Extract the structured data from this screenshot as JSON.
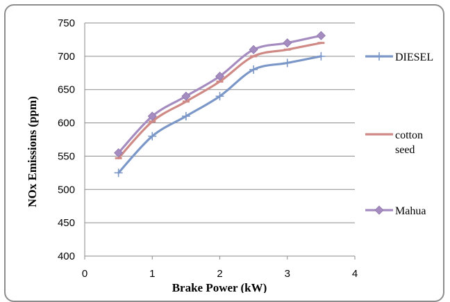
{
  "chart_data": {
    "type": "line",
    "title": "",
    "xlabel": "Brake Power (kW)",
    "ylabel": "NOx Emissions (ppm)",
    "xlim": [
      0,
      4
    ],
    "ylim": [
      400,
      750
    ],
    "x_ticks": [
      "0",
      "1",
      "2",
      "3",
      "4"
    ],
    "y_ticks": [
      "400",
      "450",
      "500",
      "550",
      "600",
      "650",
      "700",
      "750"
    ],
    "grid": "horizontal",
    "legend_position": "right",
    "x": [
      0.5,
      1.0,
      1.5,
      2.0,
      2.5,
      3.0,
      3.5
    ],
    "series": [
      {
        "name": "DIESEL",
        "label_lines": [
          "DIESEL"
        ],
        "color": "#7b97c8",
        "marker": "plus",
        "values": [
          525,
          580,
          610,
          640,
          680,
          690,
          700
        ]
      },
      {
        "name": "cotton seed",
        "label_lines": [
          "cotton",
          "seed"
        ],
        "color": "#d08a86",
        "marker": "dash",
        "values": [
          547,
          602,
          632,
          662,
          700,
          710,
          720
        ]
      },
      {
        "name": "Mahua",
        "label_lines": [
          "Mahua"
        ],
        "color": "#a58cc0",
        "marker": "diamond",
        "values": [
          555,
          610,
          640,
          670,
          710,
          720,
          731
        ]
      }
    ]
  }
}
